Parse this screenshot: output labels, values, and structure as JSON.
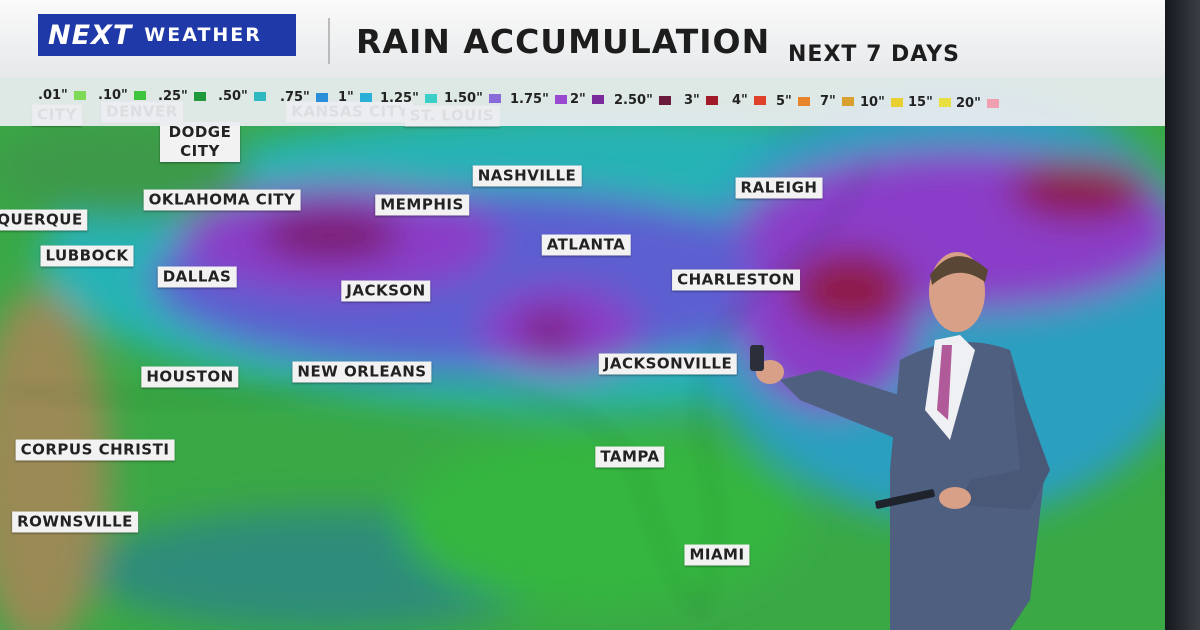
{
  "header": {
    "logo_main": "NEXT",
    "logo_sub": "WEATHER",
    "title": "RAIN ACCUMULATION",
    "subtitle": "NEXT 7 DAYS"
  },
  "legend": [
    {
      "label": ".01\"",
      "color": "#7ed957"
    },
    {
      "label": ".10\"",
      "color": "#3fc43f"
    },
    {
      "label": ".25\"",
      "color": "#1f9a3a"
    },
    {
      "label": ".50\"",
      "color": "#2fb8c0"
    },
    {
      "label": ".75\"",
      "color": "#2a8fd8"
    },
    {
      "label": "1\"",
      "color": "#2ab0d8"
    },
    {
      "label": "1.25\"",
      "color": "#3ad0c8"
    },
    {
      "label": "1.50\"",
      "color": "#8a6ad8"
    },
    {
      "label": "1.75\"",
      "color": "#9a4ad0"
    },
    {
      "label": "2\"",
      "color": "#7a2a9a"
    },
    {
      "label": "2.50\"",
      "color": "#6a1a3a"
    },
    {
      "label": "3\"",
      "color": "#a01a2a"
    },
    {
      "label": "4\"",
      "color": "#e0402a"
    },
    {
      "label": "5\"",
      "color": "#e8842a"
    },
    {
      "label": "7\"",
      "color": "#d8a030"
    },
    {
      "label": "10\"",
      "color": "#e8d030"
    },
    {
      "label": "15\"",
      "color": "#e8e040"
    },
    {
      "label": "20\"",
      "color": "#f0a0b0"
    }
  ],
  "cities": [
    {
      "label": "CITY"
    },
    {
      "label": "DENVER"
    },
    {
      "label": "KANSAS CITY"
    },
    {
      "label": "ST. LOUIS"
    },
    {
      "label": "DODGE CITY"
    },
    {
      "label": "OKLAHOMA CITY"
    },
    {
      "label": "MEMPHIS"
    },
    {
      "label": "NASHVILLE"
    },
    {
      "label": "RALEIGH"
    },
    {
      "label": "QUERQUE"
    },
    {
      "label": "LUBBOCK"
    },
    {
      "label": "DALLAS"
    },
    {
      "label": "JACKSON"
    },
    {
      "label": "ATLANTA"
    },
    {
      "label": "CHARLESTON"
    },
    {
      "label": "HOUSTON"
    },
    {
      "label": "NEW ORLEANS"
    },
    {
      "label": "JACKSONVILLE"
    },
    {
      "label": "CORPUS CHRISTI"
    },
    {
      "label": "TAMPA"
    },
    {
      "label": "ROWNSVILLE"
    },
    {
      "label": "MIAMI"
    }
  ]
}
